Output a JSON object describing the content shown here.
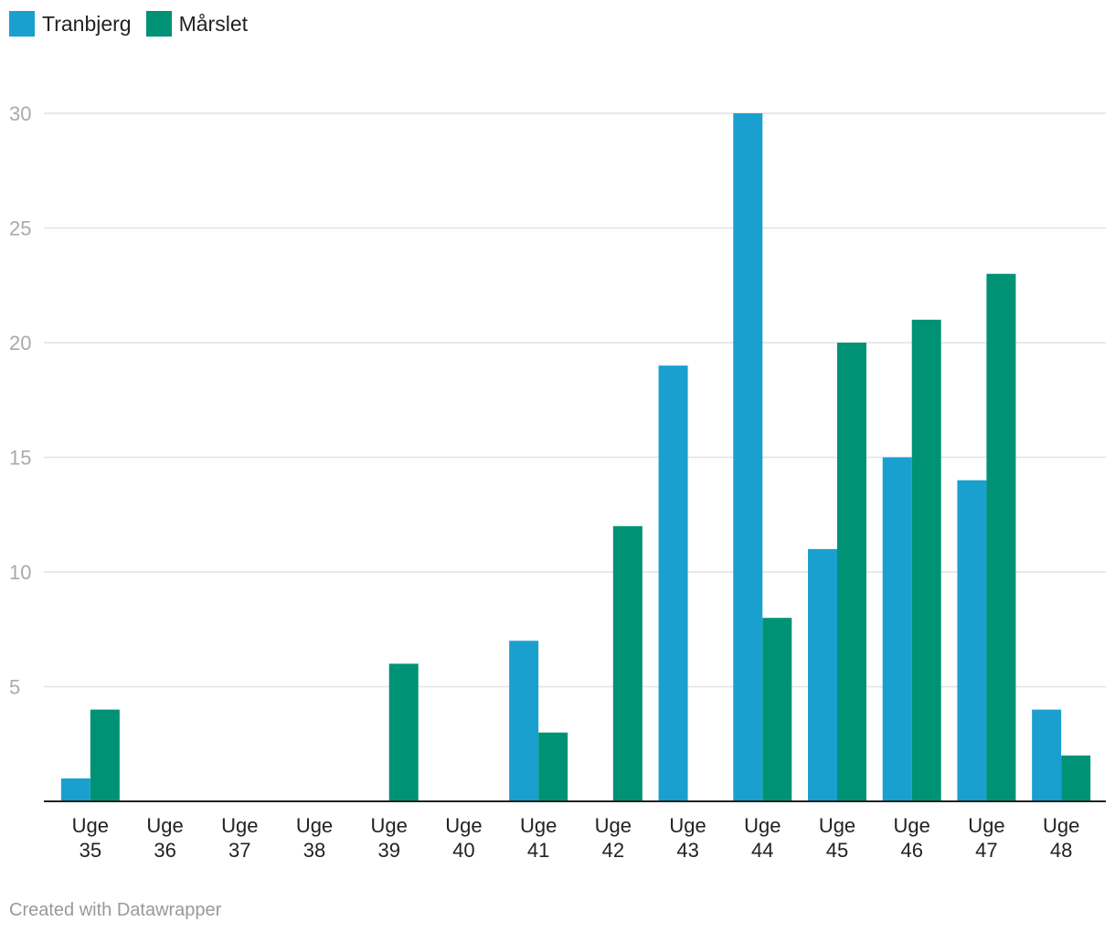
{
  "chart_data": {
    "type": "bar",
    "categories": [
      [
        "Uge",
        "35"
      ],
      [
        "Uge",
        "36"
      ],
      [
        "Uge",
        "37"
      ],
      [
        "Uge",
        "38"
      ],
      [
        "Uge",
        "39"
      ],
      [
        "Uge",
        "40"
      ],
      [
        "Uge",
        "41"
      ],
      [
        "Uge",
        "42"
      ],
      [
        "Uge",
        "43"
      ],
      [
        "Uge",
        "44"
      ],
      [
        "Uge",
        "45"
      ],
      [
        "Uge",
        "46"
      ],
      [
        "Uge",
        "47"
      ],
      [
        "Uge",
        "48"
      ]
    ],
    "series": [
      {
        "name": "Tranbjerg",
        "color": "#1aa0cf",
        "values": [
          1,
          0,
          0,
          0,
          0,
          0,
          7,
          0,
          19,
          30,
          11,
          15,
          14,
          4
        ]
      },
      {
        "name": "Mårslet",
        "color": "#009275",
        "values": [
          4,
          0,
          0,
          0,
          6,
          0,
          3,
          12,
          0,
          8,
          20,
          21,
          23,
          2
        ]
      }
    ],
    "ylim": [
      0,
      30
    ],
    "yticks": [
      "5",
      "10",
      "15",
      "20",
      "25",
      "30"
    ],
    "grid": true,
    "legend_position": "top-left"
  },
  "footer": {
    "credit": "Created with Datawrapper"
  }
}
